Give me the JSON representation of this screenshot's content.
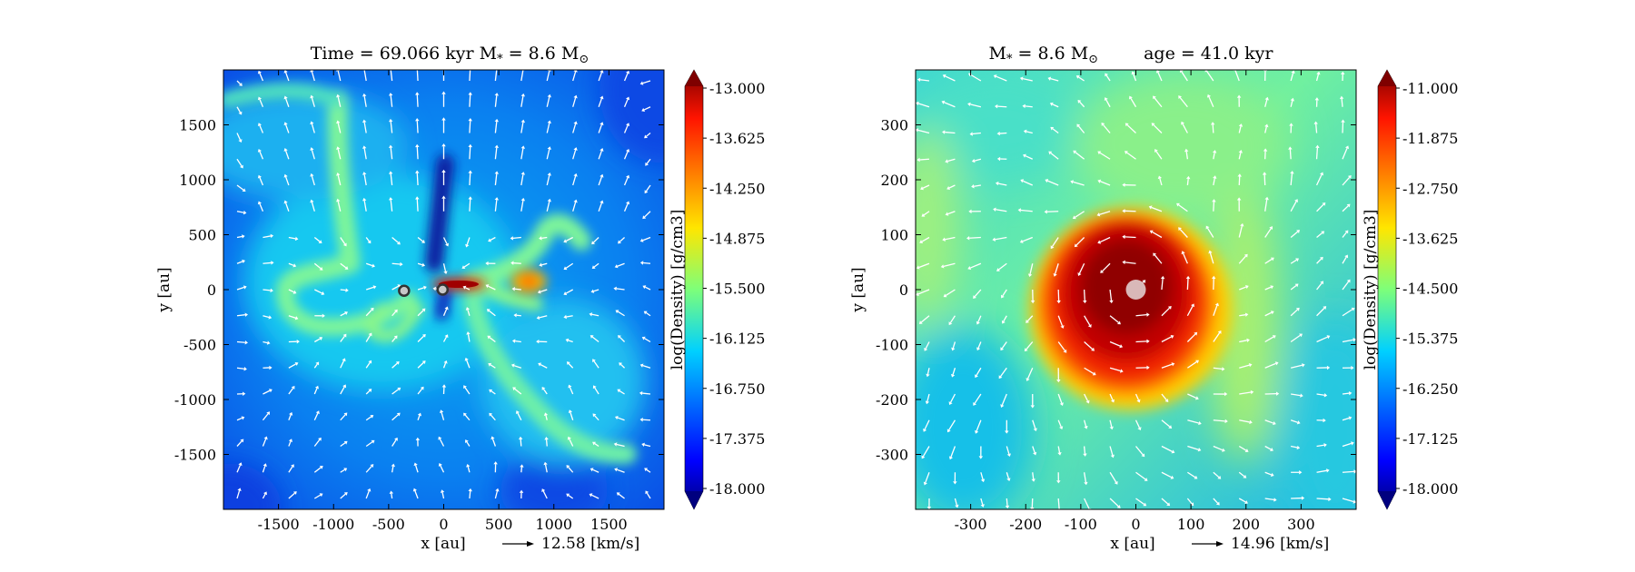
{
  "chart_data": [
    {
      "type": "heatmap",
      "title": "Time = 69.066 kyr    M$_*$ = 8.6 M$_\\odot$",
      "title_display": "Time = 69.066 kyr    M",
      "title_star": "*",
      "title_mid": " = 8.6 M",
      "title_sun": "⊙",
      "xlabel": "x [au]",
      "ylabel": "y [au]",
      "xlim": [
        -2000,
        2000
      ],
      "ylim": [
        -2000,
        2000
      ],
      "xticks": [
        -1500,
        -1000,
        -500,
        0,
        500,
        1000,
        1500
      ],
      "yticks": [
        1500,
        1000,
        500,
        0,
        -500,
        -1000,
        -1500
      ],
      "vector_key": "12.58 [km/s]",
      "colorbar": {
        "label": "log(Density) [g/cm3]",
        "colormap": "jet",
        "range": [
          -18.0,
          -13.0
        ],
        "ticks": [
          "-13.000",
          "-13.625",
          "-14.250",
          "-14.875",
          "-15.500",
          "-16.125",
          "-16.750",
          "-17.375",
          "-18.000"
        ]
      },
      "sinks": [
        {
          "x": -360,
          "y": -10
        },
        {
          "x": -10,
          "y": 0
        }
      ],
      "features": [
        {
          "kind": "disk",
          "x": 170,
          "y": 20,
          "value": -13.2
        },
        {
          "kind": "clump",
          "x": 820,
          "y": 0,
          "value": -14.6
        },
        {
          "kind": "filament",
          "x": -850,
          "y": 1200,
          "value": -15.5
        },
        {
          "kind": "cavity",
          "x": 0,
          "y": 350,
          "value": -17.8
        }
      ]
    },
    {
      "type": "heatmap",
      "title": "M$_*$ = 8.6 M$_\\odot$        age = 41.0 kyr",
      "title_display": "M",
      "title_star": "*",
      "title_mid": " = 8.6 M",
      "title_sun": "⊙",
      "title_age": "age = 41.0 kyr",
      "xlabel": "x [au]",
      "ylabel": "y [au]",
      "xlim": [
        -400,
        400
      ],
      "ylim": [
        -400,
        400
      ],
      "xticks": [
        -300,
        -200,
        -100,
        0,
        100,
        200,
        300
      ],
      "yticks": [
        300,
        200,
        100,
        0,
        -100,
        -200,
        -300
      ],
      "vector_key": "14.96 [km/s]",
      "colorbar": {
        "label": "log(Density) [g/cm3]",
        "colormap": "jet",
        "range": [
          -18.0,
          -11.0
        ],
        "ticks": [
          "-11.000",
          "-11.875",
          "-12.750",
          "-13.625",
          "-14.500",
          "-15.375",
          "-16.250",
          "-17.125",
          "-18.000"
        ]
      },
      "sinks": [
        {
          "x": 0,
          "y": 0
        }
      ],
      "features": [
        {
          "kind": "disk",
          "x": 0,
          "y": 0,
          "value": -11.2
        }
      ]
    }
  ]
}
